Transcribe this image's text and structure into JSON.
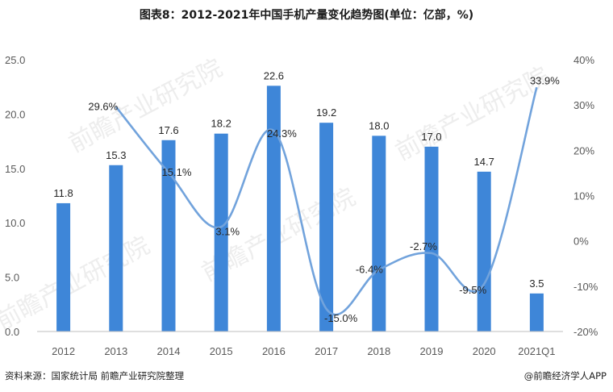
{
  "title": "图表8：2012-2021年中国手机产量变化趋势图(单位：亿部，%)",
  "source": "资料来源：国家统计局 前瞻产业研究院整理",
  "credit": "@前瞻经济学人APP",
  "watermark": "前瞻产业研究院",
  "colors": {
    "bar": "#3e86d8",
    "line": "#72a3dc"
  },
  "chart_data": {
    "type": "bar",
    "categories": [
      "2012",
      "2013",
      "2014",
      "2015",
      "2016",
      "2017",
      "2018",
      "2019",
      "2020",
      "2021Q1"
    ],
    "series": [
      {
        "type": "bar",
        "axis": "left",
        "values": [
          11.8,
          15.3,
          17.6,
          18.2,
          22.6,
          19.2,
          18.0,
          17.0,
          14.7,
          3.5
        ],
        "labels": [
          "11.8",
          "15.3",
          "17.6",
          "18.2",
          "22.6",
          "19.2",
          "18.0",
          "17.0",
          "14.7",
          "3.5"
        ]
      },
      {
        "type": "line",
        "axis": "right",
        "smooth": true,
        "values": [
          null,
          29.6,
          15.1,
          3.1,
          24.3,
          -15.0,
          -6.4,
          -2.7,
          -9.5,
          33.9
        ],
        "labels": [
          "",
          "29.6%",
          "15.1%",
          "3.1%",
          "24.3%",
          "-15.0%",
          "-6.4%",
          "-2.7%",
          "-9.5%",
          "33.9%"
        ]
      }
    ],
    "y_left": {
      "min": 0,
      "max": 25,
      "step": 5,
      "ticks": [
        "0.0",
        "5.0",
        "10.0",
        "15.0",
        "20.0",
        "25.0"
      ]
    },
    "y_right": {
      "min": -20,
      "max": 40,
      "step": 10,
      "ticks": [
        "-20%",
        "-10%",
        "0%",
        "10%",
        "20%",
        "30%",
        "40%"
      ]
    },
    "grid": false,
    "legend": "none"
  }
}
